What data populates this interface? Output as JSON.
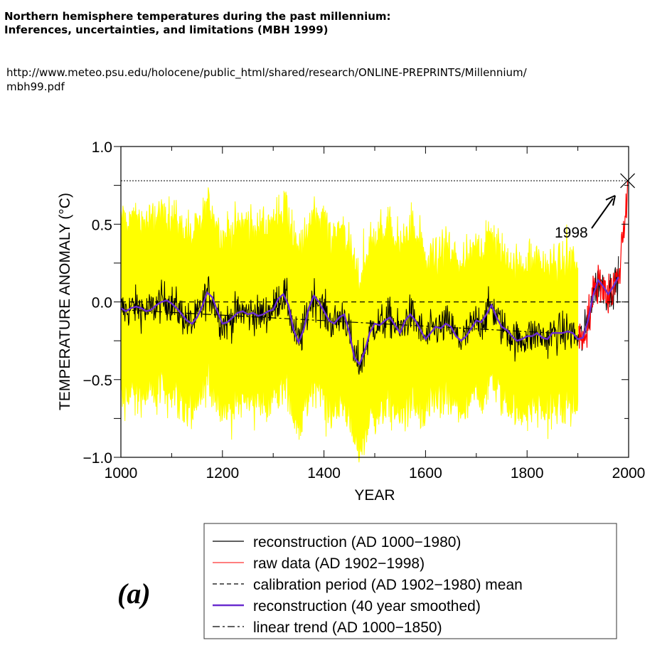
{
  "header": {
    "title_line1": "Northern hemisphere temperatures during the past millennium:",
    "title_line2": "Inferences, uncertainties, and limitations (MBH 1999)",
    "url_line1": "http://www.meteo.psu.edu/holocene/public_html/shared/research/ONLINE-PREPRINTS/Millennium/",
    "url_line2": "mbh99.pdf"
  },
  "chart_data": {
    "type": "line",
    "title": "",
    "xlabel": "YEAR",
    "ylabel": "TEMPERATURE ANOMALY (°C)",
    "xlim": [
      1000,
      2000
    ],
    "ylim": [
      -1.0,
      1.0
    ],
    "xticks": [
      1000,
      1200,
      1400,
      1600,
      1800,
      2000
    ],
    "xtick_labels": [
      "1000",
      "1200",
      "1400",
      "1600",
      "1800",
      "2000"
    ],
    "yticks": [
      1.0,
      0.5,
      0.0,
      -0.5,
      -1.0
    ],
    "ytick_labels": [
      "1.0",
      "0.5",
      "0.0",
      "−0.5",
      "−1.0"
    ],
    "panel_label": "(a)",
    "annotation": {
      "text": "1998",
      "x": 1998,
      "y": 0.78
    },
    "reference_line_1998": 0.78,
    "calibration_mean": 0.0,
    "colors": {
      "uncertainty": "#ffff00",
      "reconstruction": "#000000",
      "raw": "#ff0000",
      "smoothed": "#6a2ccf",
      "calibration": "#000000",
      "trend": "#000000"
    },
    "legend": {
      "placement": "below",
      "entries": [
        {
          "label": "reconstruction (AD 1000−1980)",
          "style": "solid",
          "color": "#000000"
        },
        {
          "label": "raw data (AD 1902−1998)",
          "style": "solid",
          "color": "#ff3333"
        },
        {
          "label": "calibration period (AD 1902−1980) mean",
          "style": "dashed",
          "color": "#000000"
        },
        {
          "label": "reconstruction (40 year smoothed)",
          "style": "solid-thick",
          "color": "#6a2ccf"
        },
        {
          "label": "linear trend (AD 1000−1850)",
          "style": "dashdot",
          "color": "#000000"
        }
      ]
    },
    "series": [
      {
        "name": "reconstruction (40 year smoothed)",
        "x": [
          1000,
          1010,
          1020,
          1030,
          1040,
          1050,
          1060,
          1070,
          1080,
          1090,
          1100,
          1110,
          1120,
          1130,
          1140,
          1150,
          1160,
          1170,
          1180,
          1190,
          1200,
          1210,
          1220,
          1230,
          1240,
          1250,
          1260,
          1270,
          1280,
          1290,
          1300,
          1310,
          1320,
          1330,
          1340,
          1350,
          1360,
          1370,
          1380,
          1390,
          1400,
          1410,
          1420,
          1430,
          1440,
          1450,
          1460,
          1470,
          1480,
          1490,
          1500,
          1510,
          1520,
          1530,
          1540,
          1550,
          1560,
          1570,
          1580,
          1590,
          1600,
          1610,
          1620,
          1630,
          1640,
          1650,
          1660,
          1670,
          1680,
          1690,
          1700,
          1710,
          1720,
          1730,
          1740,
          1750,
          1760,
          1770,
          1780,
          1790,
          1800,
          1810,
          1820,
          1830,
          1840,
          1850,
          1860,
          1870,
          1880,
          1890,
          1900,
          1910,
          1920,
          1930,
          1940,
          1950,
          1960,
          1970,
          1980
        ],
        "y": [
          -0.04,
          -0.06,
          -0.04,
          -0.03,
          -0.04,
          -0.06,
          -0.05,
          -0.02,
          0.0,
          0.01,
          -0.01,
          -0.04,
          -0.08,
          -0.12,
          -0.14,
          -0.1,
          -0.03,
          0.06,
          0.03,
          -0.06,
          -0.14,
          -0.13,
          -0.1,
          -0.07,
          -0.06,
          -0.08,
          -0.07,
          -0.09,
          -0.08,
          -0.06,
          -0.05,
          0.02,
          0.05,
          -0.02,
          -0.18,
          -0.26,
          -0.18,
          -0.04,
          0.04,
          0.0,
          -0.06,
          -0.12,
          -0.14,
          -0.1,
          -0.08,
          -0.2,
          -0.36,
          -0.4,
          -0.32,
          -0.2,
          -0.14,
          -0.15,
          -0.12,
          -0.1,
          -0.15,
          -0.2,
          -0.12,
          -0.08,
          -0.12,
          -0.18,
          -0.24,
          -0.2,
          -0.16,
          -0.17,
          -0.14,
          -0.16,
          -0.22,
          -0.25,
          -0.22,
          -0.17,
          -0.12,
          -0.13,
          -0.08,
          -0.02,
          -0.1,
          -0.16,
          -0.18,
          -0.22,
          -0.25,
          -0.24,
          -0.22,
          -0.22,
          -0.2,
          -0.23,
          -0.24,
          -0.2,
          -0.2,
          -0.2,
          -0.19,
          -0.2,
          -0.24,
          -0.23,
          -0.12,
          0.04,
          0.14,
          0.1,
          0.05,
          0.1,
          0.16
        ]
      },
      {
        "name": "linear trend (AD 1000−1850)",
        "x": [
          1000,
          1850
        ],
        "y": [
          -0.05,
          -0.2
        ]
      }
    ]
  }
}
